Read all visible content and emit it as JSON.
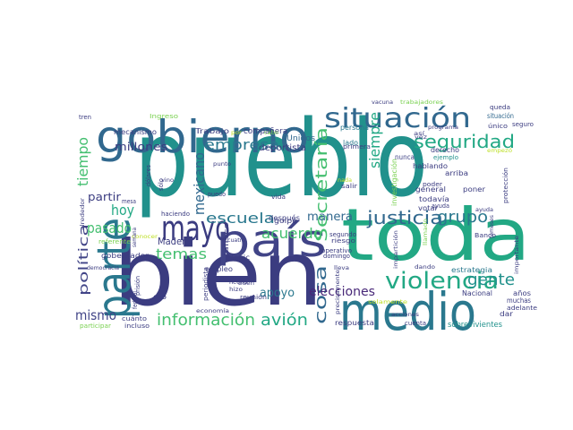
{
  "palette": {
    "navy": "#3b3c80",
    "indigo": "#414487",
    "slate": "#31688e",
    "steel": "#2a788e",
    "teal": "#21918c",
    "sea": "#22a884",
    "green": "#44bf70",
    "lime": "#7ad151",
    "yellow": "#bddf26",
    "purple": "#482878",
    "violet": "#440154"
  },
  "words": [
    {
      "text": "pueblo",
      "color": "teal"
    },
    {
      "text": "bien",
      "color": "navy"
    },
    {
      "text": "toda",
      "color": "sea"
    },
    {
      "text": "medio",
      "color": "steel"
    },
    {
      "text": "país",
      "color": "indigo"
    },
    {
      "text": "gobierno",
      "color": "slate"
    },
    {
      "text": "parte",
      "color": "steel"
    },
    {
      "text": "mayo",
      "color": "navy"
    },
    {
      "text": "situación",
      "color": "slate"
    },
    {
      "text": "violencia",
      "color": "sea"
    },
    {
      "text": "seguridad",
      "color": "sea"
    },
    {
      "text": "justicia",
      "color": "slate"
    },
    {
      "text": "información",
      "color": "green"
    },
    {
      "text": "avión",
      "color": "sea"
    },
    {
      "text": "empresa",
      "color": "steel"
    },
    {
      "text": "Secretaría",
      "color": "green"
    },
    {
      "text": "gente",
      "color": "teal"
    },
    {
      "text": "grupo",
      "color": "steel"
    },
    {
      "text": "cosa",
      "color": "slate"
    },
    {
      "text": "acuerdo",
      "color": "green"
    },
    {
      "text": "escuela",
      "color": "steel"
    },
    {
      "text": "temas",
      "color": "green"
    },
    {
      "text": "elecciones",
      "color": "purple"
    },
    {
      "text": "mexicano",
      "color": "slate"
    },
    {
      "text": "siempre",
      "color": "sea"
    },
    {
      "text": "tiempo",
      "color": "green"
    },
    {
      "text": "hoy",
      "color": "sea"
    },
    {
      "text": "pasado",
      "color": "green"
    },
    {
      "text": "mismo",
      "color": "indigo"
    },
    {
      "text": "política",
      "color": "indigo"
    },
    {
      "text": "apoyo",
      "color": "steel"
    },
    {
      "text": "manera",
      "color": "slate"
    },
    {
      "text": "millones",
      "color": "navy"
    },
    {
      "text": "partir",
      "color": "navy"
    },
    {
      "text": "Madero",
      "color": "navy"
    },
    {
      "text": "deportista",
      "color": "navy"
    },
    {
      "text": "Unidos",
      "color": "slate"
    },
    {
      "text": "compañera",
      "color": "navy"
    },
    {
      "text": "Trabajo",
      "color": "navy"
    },
    {
      "text": "mecanismo",
      "color": "navy"
    },
    {
      "text": "situación",
      "color": "slate"
    },
    {
      "text": "investigación",
      "color": "lime"
    },
    {
      "text": "persona",
      "color": "steel"
    },
    {
      "text": "lado",
      "color": "steel"
    },
    {
      "text": "nunca",
      "color": "indigo"
    },
    {
      "text": "hablando",
      "color": "navy"
    },
    {
      "text": "derecho",
      "color": "navy"
    },
    {
      "text": "ejemplo",
      "color": "teal"
    },
    {
      "text": "todavía",
      "color": "navy"
    },
    {
      "text": "general",
      "color": "navy"
    },
    {
      "text": "poner",
      "color": "navy"
    },
    {
      "text": "poder",
      "color": "navy"
    },
    {
      "text": "votar",
      "color": "navy"
    },
    {
      "text": "ayuda",
      "color": "navy"
    },
    {
      "text": "Banco",
      "color": "navy"
    },
    {
      "text": "riesgo",
      "color": "navy"
    },
    {
      "text": "segundo",
      "color": "navy"
    },
    {
      "text": "operativo",
      "color": "navy"
    },
    {
      "text": "domingo",
      "color": "navy"
    },
    {
      "text": "estrategia",
      "color": "steel"
    },
    {
      "text": "años",
      "color": "navy"
    },
    {
      "text": "muchas",
      "color": "navy"
    },
    {
      "text": "adelante",
      "color": "navy"
    },
    {
      "text": "dar",
      "color": "navy"
    },
    {
      "text": "Nacional",
      "color": "navy"
    },
    {
      "text": "respuesta",
      "color": "navy"
    },
    {
      "text": "cuenta",
      "color": "navy"
    },
    {
      "text": "sobrevivientes",
      "color": "teal"
    },
    {
      "text": "empleo",
      "color": "navy"
    },
    {
      "text": "hecho",
      "color": "navy"
    },
    {
      "text": "hizo",
      "color": "navy"
    },
    {
      "text": "dio",
      "color": "navy"
    },
    {
      "text": "reunión",
      "color": "navy"
    },
    {
      "text": "periodista",
      "color": "navy"
    },
    {
      "text": "economía",
      "color": "navy"
    },
    {
      "text": "Tepic",
      "color": "navy"
    },
    {
      "text": "Jalisco",
      "color": "navy"
    },
    {
      "text": "después",
      "color": "navy"
    },
    {
      "text": "golpe",
      "color": "navy"
    },
    {
      "text": "vida",
      "color": "navy"
    },
    {
      "text": "puedo",
      "color": "navy"
    },
    {
      "text": "cuatro",
      "color": "navy"
    },
    {
      "text": "gobernador",
      "color": "navy"
    },
    {
      "text": "cuánto",
      "color": "navy"
    },
    {
      "text": "incluso",
      "color": "navy"
    },
    {
      "text": "participar",
      "color": "lime"
    },
    {
      "text": "democracia",
      "color": "navy"
    },
    {
      "text": "prisión",
      "color": "navy"
    },
    {
      "text": "federal",
      "color": "navy"
    },
    {
      "text": "referente",
      "color": "lime"
    },
    {
      "text": "conocer",
      "color": "yellow"
    },
    {
      "text": "haciendo",
      "color": "navy"
    },
    {
      "text": "dólares",
      "color": "navy"
    },
    {
      "text": "sólo",
      "color": "navy"
    },
    {
      "text": "semana",
      "color": "navy"
    },
    {
      "text": "alrededor",
      "color": "navy"
    },
    {
      "text": "mesa",
      "color": "navy"
    },
    {
      "text": "vino",
      "color": "navy"
    },
    {
      "text": "punto",
      "color": "navy"
    },
    {
      "text": "tren",
      "color": "navy"
    },
    {
      "text": "Ingreso",
      "color": "lime"
    },
    {
      "text": "vacuna",
      "color": "navy"
    },
    {
      "text": "trabajadores",
      "color": "lime"
    },
    {
      "text": "queda",
      "color": "navy"
    },
    {
      "text": "único",
      "color": "navy"
    },
    {
      "text": "seguro",
      "color": "navy"
    },
    {
      "text": "empezó",
      "color": "yellow"
    },
    {
      "text": "programa",
      "color": "navy"
    },
    {
      "text": "arriba",
      "color": "navy"
    },
    {
      "text": "protección",
      "color": "navy"
    },
    {
      "text": "primera",
      "color": "navy"
    },
    {
      "text": "buen",
      "color": "navy"
    },
    {
      "text": "salir",
      "color": "navy"
    },
    {
      "text": "precisamente",
      "color": "navy"
    },
    {
      "text": "solamente",
      "color": "yellow"
    },
    {
      "text": "acciones",
      "color": "navy"
    },
    {
      "text": "impartición",
      "color": "navy"
    },
    {
      "text": "dando",
      "color": "navy"
    },
    {
      "text": "importante",
      "color": "navy"
    },
    {
      "text": "llamado",
      "color": "lime"
    },
    {
      "text": "temeses",
      "color": "navy"
    },
    {
      "text": "lleva",
      "color": "navy"
    },
    {
      "text": "vez",
      "color": "navy"
    },
    {
      "text": "así",
      "color": "navy"
    },
    {
      "text": "cabo",
      "color": "lime"
    },
    {
      "text": "por",
      "color": "yellow"
    },
    {
      "text": "nada",
      "color": "yellow"
    },
    {
      "text": "ayuda",
      "color": "navy"
    }
  ]
}
